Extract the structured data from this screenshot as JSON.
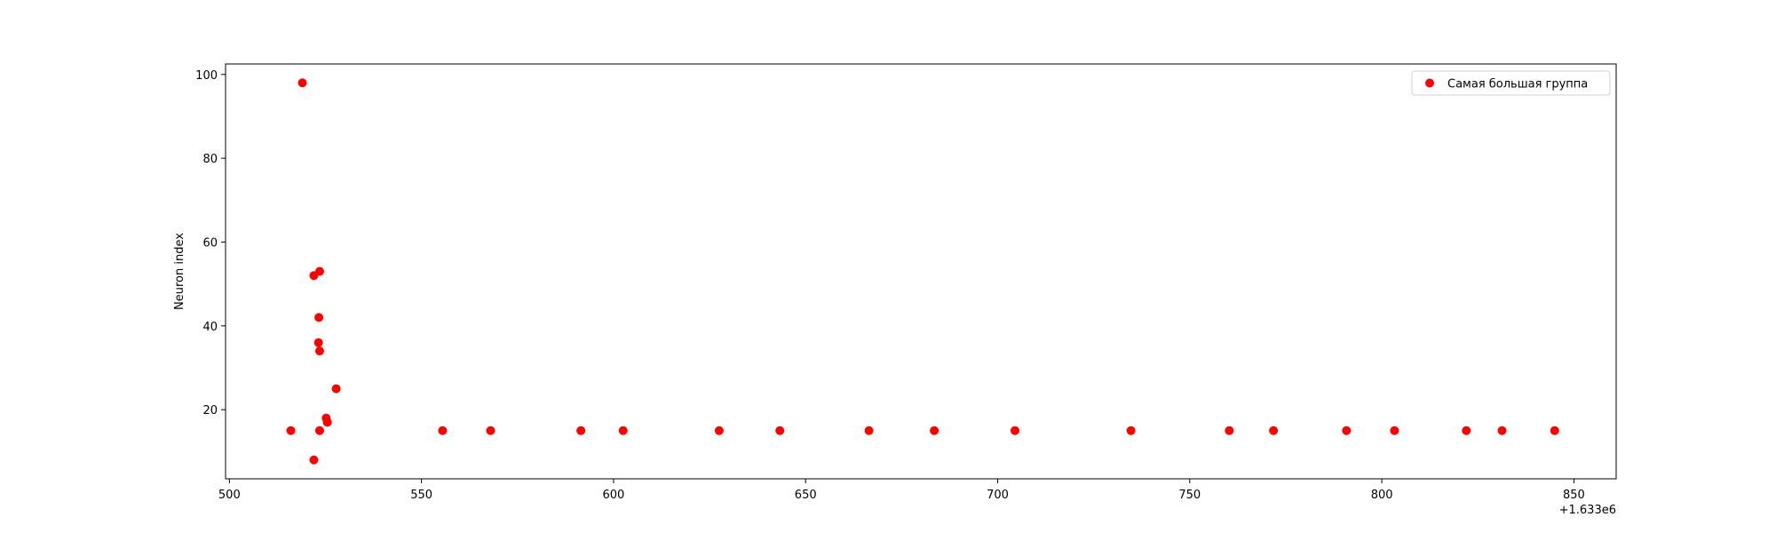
{
  "chart_data": {
    "type": "scatter",
    "xlabel": "",
    "ylabel": "Neuron index",
    "x_offset_label": "+1.633e6",
    "x_ticks": [
      500,
      550,
      600,
      650,
      700,
      750,
      800,
      850
    ],
    "y_ticks": [
      20,
      40,
      60,
      80,
      100
    ],
    "xlim": [
      499,
      861
    ],
    "ylim": [
      3.5,
      102.5
    ],
    "grid": false,
    "legend_position": "top-right",
    "series": [
      {
        "name": "Самая большая группа",
        "color": "#ff0000",
        "points": [
          {
            "x": 516,
            "y": 15
          },
          {
            "x": 519,
            "y": 98
          },
          {
            "x": 522,
            "y": 52
          },
          {
            "x": 522,
            "y": 8
          },
          {
            "x": 523.5,
            "y": 53
          },
          {
            "x": 523.3,
            "y": 42
          },
          {
            "x": 523.2,
            "y": 36
          },
          {
            "x": 523.5,
            "y": 34
          },
          {
            "x": 523.5,
            "y": 15
          },
          {
            "x": 525.2,
            "y": 18
          },
          {
            "x": 525.5,
            "y": 17
          },
          {
            "x": 527.8,
            "y": 25
          },
          {
            "x": 555.5,
            "y": 15
          },
          {
            "x": 568,
            "y": 15
          },
          {
            "x": 591.5,
            "y": 15
          },
          {
            "x": 602.5,
            "y": 15
          },
          {
            "x": 627.5,
            "y": 15
          },
          {
            "x": 643.3,
            "y": 15
          },
          {
            "x": 666.5,
            "y": 15
          },
          {
            "x": 683.5,
            "y": 15
          },
          {
            "x": 704.5,
            "y": 15
          },
          {
            "x": 734.7,
            "y": 15
          },
          {
            "x": 760.3,
            "y": 15
          },
          {
            "x": 771.8,
            "y": 15
          },
          {
            "x": 790.8,
            "y": 15
          },
          {
            "x": 803.3,
            "y": 15
          },
          {
            "x": 822,
            "y": 15
          },
          {
            "x": 831.3,
            "y": 15
          },
          {
            "x": 845,
            "y": 15
          }
        ]
      }
    ]
  }
}
